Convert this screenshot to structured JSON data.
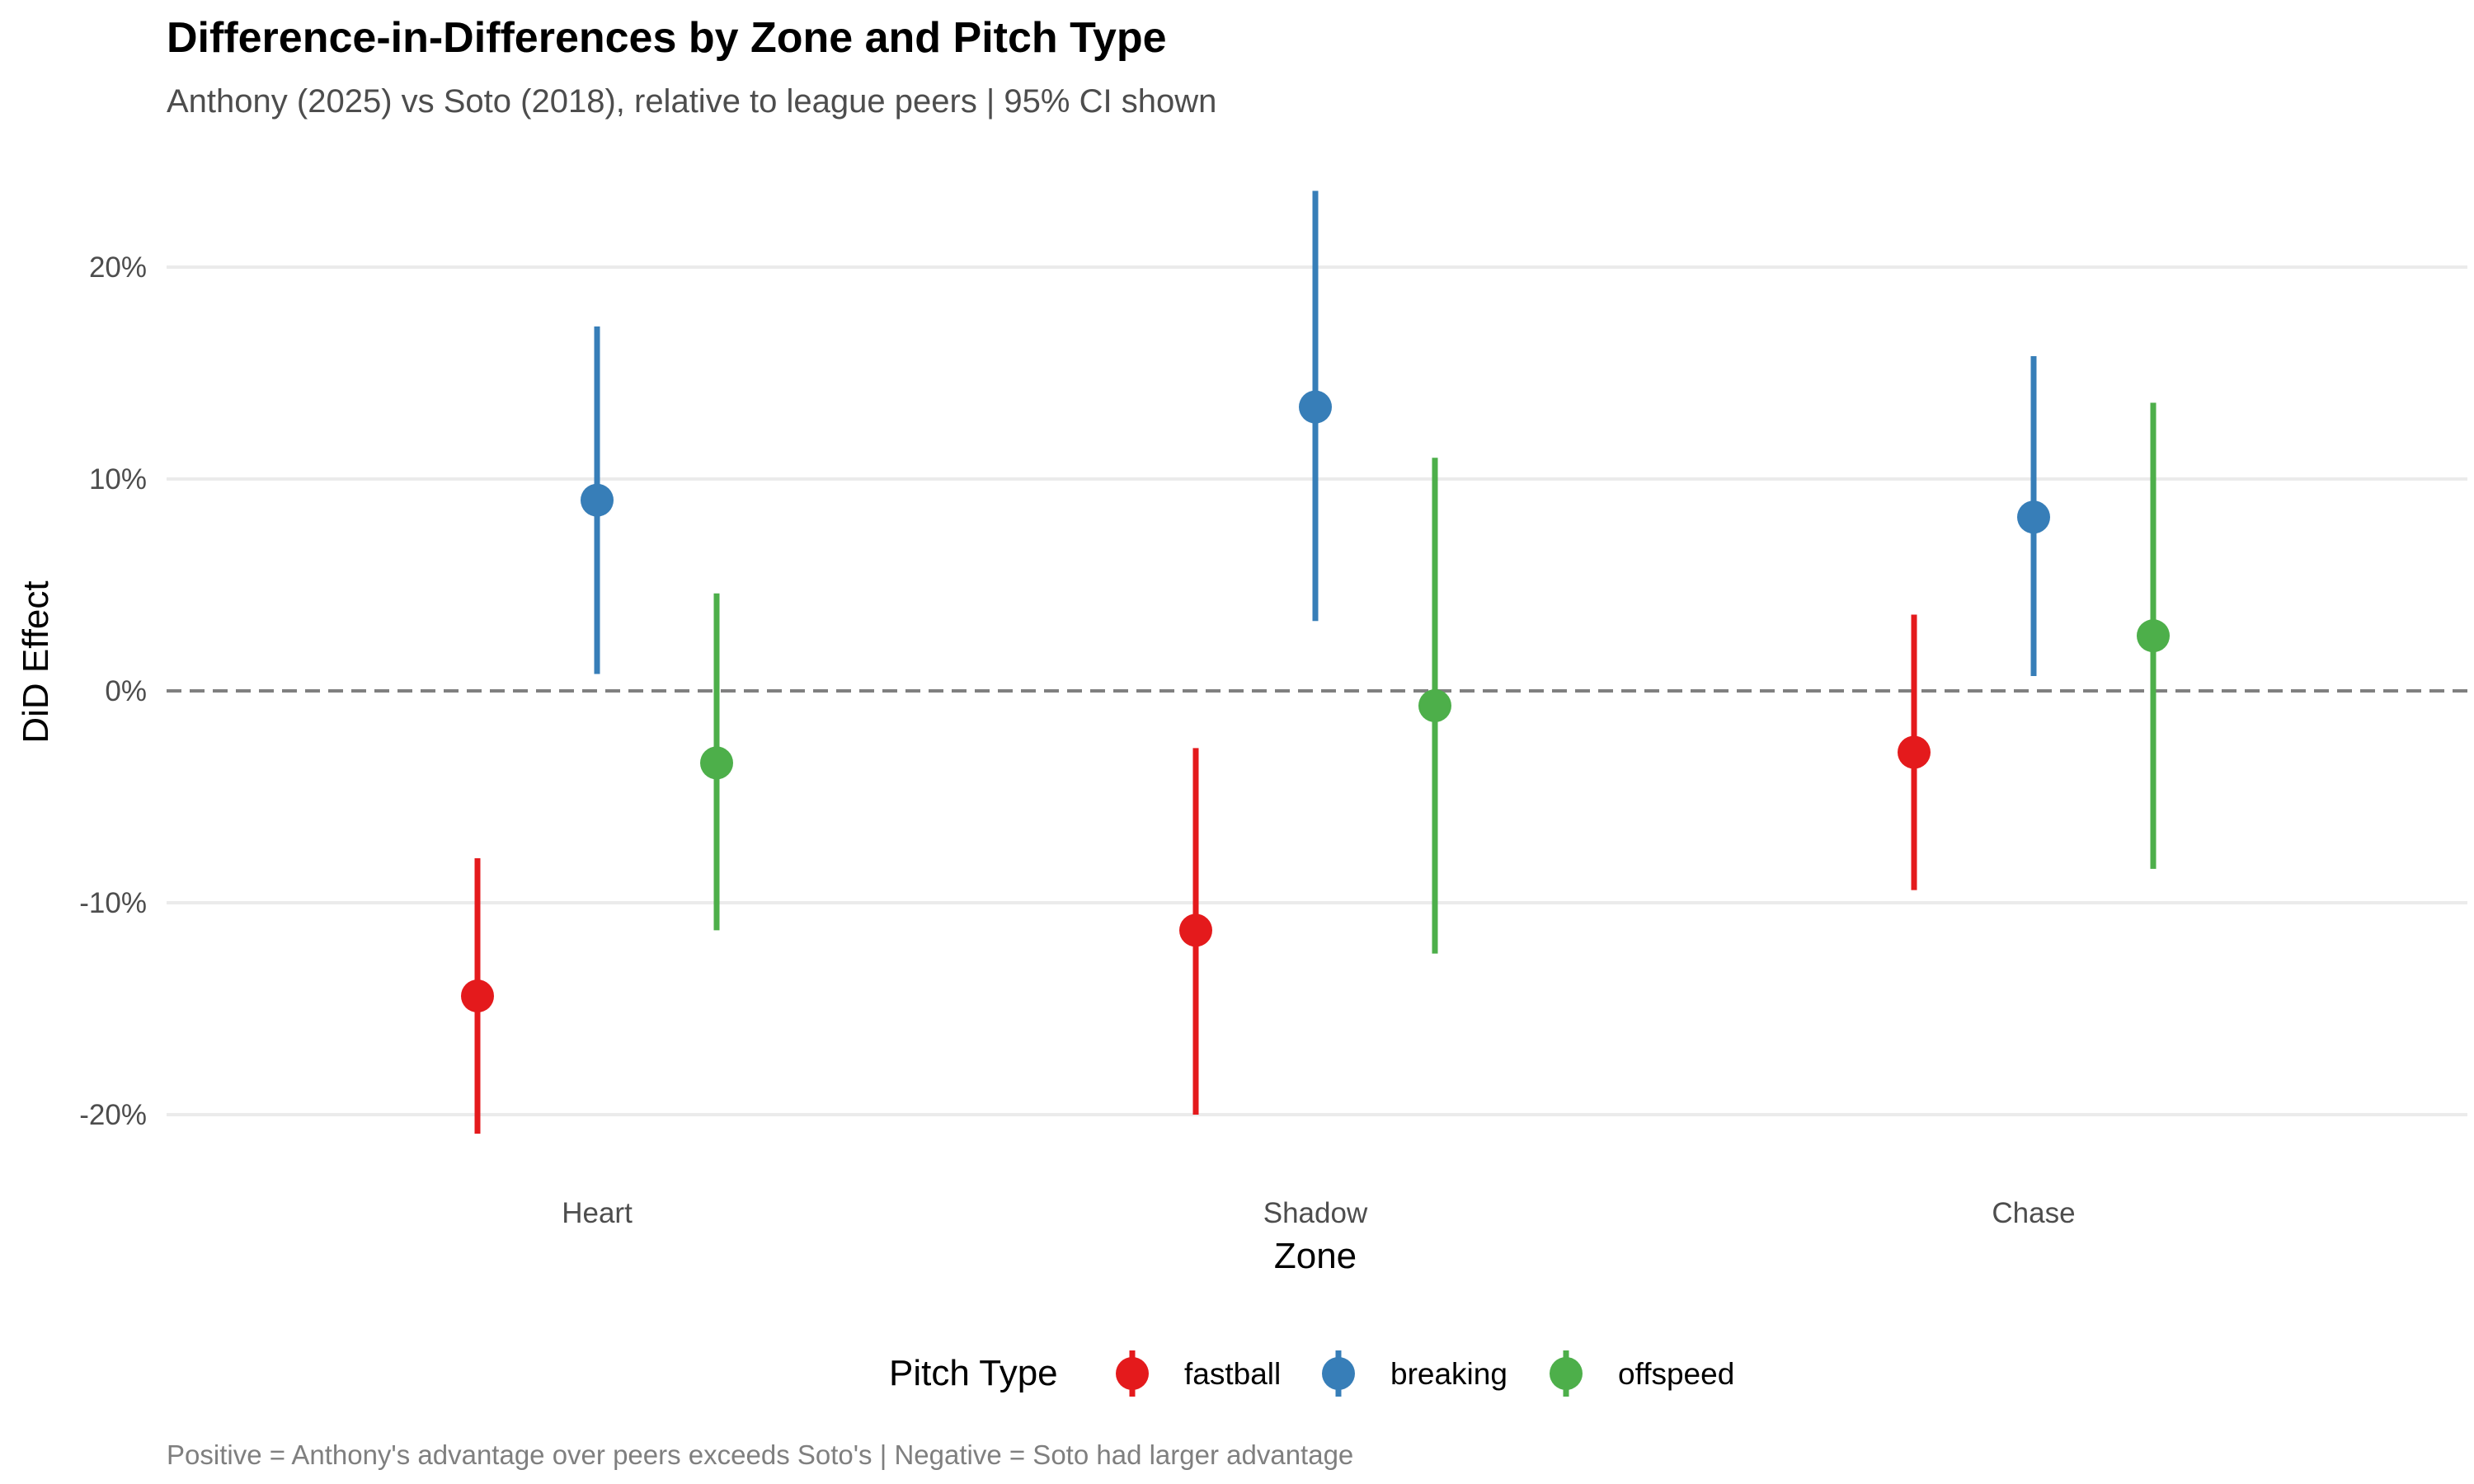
{
  "chart_data": {
    "type": "errorbar",
    "title": "Difference-in-Differences by Zone and Pitch Type",
    "subtitle": "Anthony (2025) vs Soto (2018), relative to league peers | 95% CI shown",
    "xlabel": "Zone",
    "ylabel": "DiD Effect",
    "categories": [
      "Heart",
      "Shadow",
      "Chase"
    ],
    "ylim": [
      -0.21,
      0.235
    ],
    "y_ticks": [
      -0.2,
      -0.1,
      0,
      0.1,
      0.2
    ],
    "y_tick_labels": [
      "-20%",
      "-10%",
      "0%",
      "10%",
      "20%"
    ],
    "reference_line": {
      "y": 0,
      "style": "dashed",
      "color": "#808080"
    },
    "legend": {
      "title": "Pitch Type",
      "position": "bottom"
    },
    "series": [
      {
        "name": "fastball",
        "color": "#E41A1C",
        "values": [
          -0.144,
          -0.113,
          -0.029
        ],
        "lower": [
          -0.209,
          -0.2,
          -0.094
        ],
        "upper": [
          -0.079,
          -0.027,
          0.036
        ]
      },
      {
        "name": "breaking",
        "color": "#377EB8",
        "values": [
          0.09,
          0.134,
          0.082
        ],
        "lower": [
          0.008,
          0.033,
          0.007
        ],
        "upper": [
          0.172,
          0.236,
          0.158
        ]
      },
      {
        "name": "offspeed",
        "color": "#4DAF4A",
        "values": [
          -0.034,
          -0.007,
          0.026
        ],
        "lower": [
          -0.113,
          -0.124,
          -0.084
        ],
        "upper": [
          0.046,
          0.11,
          0.136
        ]
      }
    ],
    "caption": "Positive = Anthony's advantage over peers exceeds Soto's | Negative = Soto had larger advantage",
    "grid": true
  }
}
